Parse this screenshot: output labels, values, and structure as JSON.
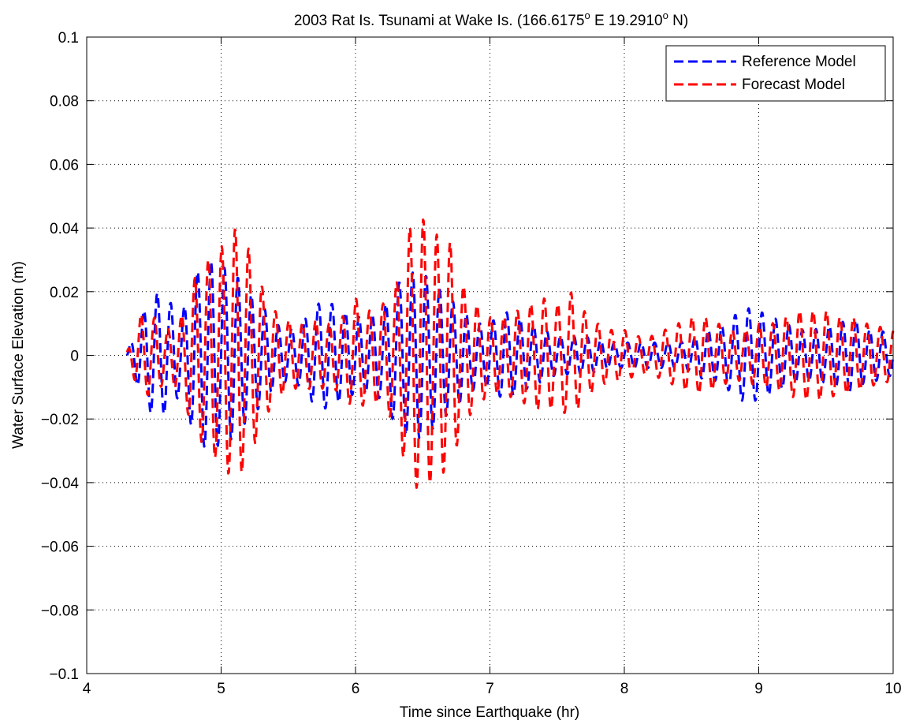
{
  "chart_data": {
    "type": "line",
    "title": "2003 Rat Is. Tsunami at Wake Is. (166.6175° E 19.2910° N)",
    "title_parts": {
      "prefix": "2003 Rat Is. Tsunami at Wake Is. (166.6175",
      "deg1": "o",
      "middle": " E 19.2910",
      "deg2": "o",
      "suffix": " N)"
    },
    "xlabel": "Time since Earthquake (hr)",
    "ylabel": "Water Surface Elevation (m)",
    "xlim": [
      4,
      10
    ],
    "ylim": [
      -0.1,
      0.1
    ],
    "xticks": [
      4,
      5,
      6,
      7,
      8,
      9,
      10
    ],
    "xtick_labels": [
      "4",
      "5",
      "6",
      "7",
      "8",
      "9",
      "10"
    ],
    "yticks": [
      -0.1,
      -0.08,
      -0.06,
      -0.04,
      -0.02,
      0,
      0.02,
      0.04,
      0.06,
      0.08,
      0.1
    ],
    "ytick_labels": [
      "−0.1",
      "−0.08",
      "−0.06",
      "−0.04",
      "−0.02",
      "0",
      "0.02",
      "0.04",
      "0.06",
      "0.08",
      "0.1"
    ],
    "grid": true,
    "grid_style": "dotted",
    "legend_position": "top-right",
    "period_hr": 0.1,
    "series": [
      {
        "name": "Reference Model",
        "color": "#0000ff",
        "style": "dashed",
        "envelope": [
          [
            4.3,
            0.001
          ],
          [
            4.4,
            0.012
          ],
          [
            4.5,
            0.02
          ],
          [
            4.6,
            0.018
          ],
          [
            4.7,
            0.012
          ],
          [
            4.8,
            0.025
          ],
          [
            4.9,
            0.03
          ],
          [
            5.0,
            0.028
          ],
          [
            5.1,
            0.026
          ],
          [
            5.2,
            0.02
          ],
          [
            5.3,
            0.016
          ],
          [
            5.4,
            0.01
          ],
          [
            5.5,
            0.008
          ],
          [
            5.6,
            0.01
          ],
          [
            5.7,
            0.016
          ],
          [
            5.8,
            0.017
          ],
          [
            5.9,
            0.014
          ],
          [
            6.0,
            0.012
          ],
          [
            6.1,
            0.012
          ],
          [
            6.2,
            0.014
          ],
          [
            6.3,
            0.022
          ],
          [
            6.4,
            0.026
          ],
          [
            6.5,
            0.026
          ],
          [
            6.6,
            0.022
          ],
          [
            6.7,
            0.018
          ],
          [
            6.8,
            0.014
          ],
          [
            6.9,
            0.01
          ],
          [
            7.0,
            0.01
          ],
          [
            7.1,
            0.014
          ],
          [
            7.2,
            0.012
          ],
          [
            7.3,
            0.01
          ],
          [
            7.4,
            0.008
          ],
          [
            7.5,
            0.006
          ],
          [
            7.6,
            0.006
          ],
          [
            7.7,
            0.006
          ],
          [
            7.8,
            0.005
          ],
          [
            7.9,
            0.004
          ],
          [
            8.0,
            0.004
          ],
          [
            8.1,
            0.004
          ],
          [
            8.2,
            0.004
          ],
          [
            8.3,
            0.004
          ],
          [
            8.4,
            0.004
          ],
          [
            8.5,
            0.005
          ],
          [
            8.6,
            0.008
          ],
          [
            8.7,
            0.008
          ],
          [
            8.8,
            0.012
          ],
          [
            8.9,
            0.015
          ],
          [
            9.0,
            0.014
          ],
          [
            9.1,
            0.012
          ],
          [
            9.2,
            0.01
          ],
          [
            9.3,
            0.008
          ],
          [
            9.4,
            0.008
          ],
          [
            9.5,
            0.009
          ],
          [
            9.6,
            0.01
          ],
          [
            9.7,
            0.012
          ],
          [
            9.8,
            0.008
          ],
          [
            9.9,
            0.008
          ],
          [
            10.0,
            0.006
          ]
        ],
        "phase": 0.0
      },
      {
        "name": "Forecast Model",
        "color": "#ff0000",
        "style": "dashed",
        "envelope": [
          [
            4.3,
            0.001
          ],
          [
            4.4,
            0.013
          ],
          [
            4.5,
            0.012
          ],
          [
            4.6,
            0.008
          ],
          [
            4.7,
            0.012
          ],
          [
            4.8,
            0.024
          ],
          [
            4.9,
            0.03
          ],
          [
            5.0,
            0.034
          ],
          [
            5.1,
            0.04
          ],
          [
            5.2,
            0.034
          ],
          [
            5.3,
            0.022
          ],
          [
            5.4,
            0.014
          ],
          [
            5.5,
            0.011
          ],
          [
            5.6,
            0.01
          ],
          [
            5.7,
            0.011
          ],
          [
            5.8,
            0.01
          ],
          [
            5.9,
            0.012
          ],
          [
            6.0,
            0.018
          ],
          [
            6.1,
            0.014
          ],
          [
            6.2,
            0.016
          ],
          [
            6.3,
            0.022
          ],
          [
            6.4,
            0.04
          ],
          [
            6.5,
            0.043
          ],
          [
            6.6,
            0.038
          ],
          [
            6.7,
            0.036
          ],
          [
            6.8,
            0.022
          ],
          [
            6.9,
            0.016
          ],
          [
            7.0,
            0.012
          ],
          [
            7.1,
            0.012
          ],
          [
            7.2,
            0.014
          ],
          [
            7.3,
            0.016
          ],
          [
            7.4,
            0.018
          ],
          [
            7.5,
            0.016
          ],
          [
            7.6,
            0.02
          ],
          [
            7.7,
            0.014
          ],
          [
            7.8,
            0.01
          ],
          [
            7.9,
            0.008
          ],
          [
            8.0,
            0.008
          ],
          [
            8.1,
            0.006
          ],
          [
            8.2,
            0.006
          ],
          [
            8.3,
            0.008
          ],
          [
            8.4,
            0.01
          ],
          [
            8.5,
            0.012
          ],
          [
            8.6,
            0.012
          ],
          [
            8.7,
            0.01
          ],
          [
            8.8,
            0.008
          ],
          [
            8.9,
            0.008
          ],
          [
            9.0,
            0.01
          ],
          [
            9.1,
            0.01
          ],
          [
            9.2,
            0.012
          ],
          [
            9.3,
            0.014
          ],
          [
            9.4,
            0.014
          ],
          [
            9.5,
            0.014
          ],
          [
            9.6,
            0.012
          ],
          [
            9.7,
            0.012
          ],
          [
            9.8,
            0.01
          ],
          [
            9.9,
            0.009
          ],
          [
            10.0,
            0.008
          ]
        ],
        "phase": 1.3
      }
    ]
  }
}
